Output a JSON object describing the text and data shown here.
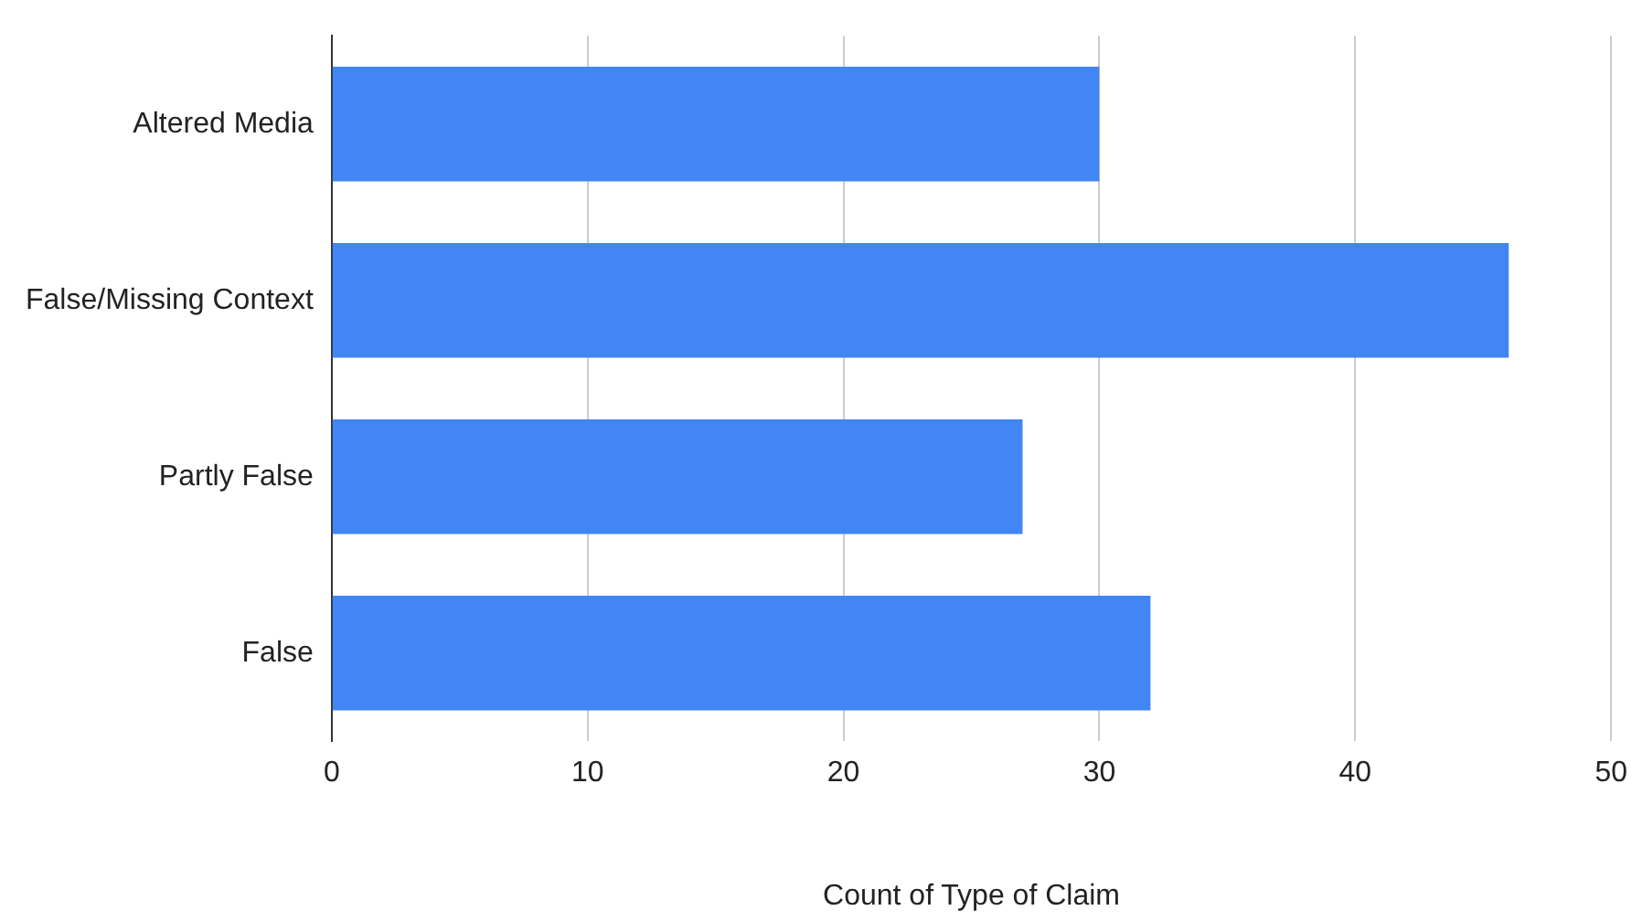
{
  "chart_data": {
    "type": "bar",
    "orientation": "horizontal",
    "xlabel": "Count of Type of Claim",
    "categories": [
      "Altered Media",
      "False/Missing Context",
      "Partly False",
      "False"
    ],
    "values": [
      30,
      46,
      27,
      32
    ],
    "color": "#4285f4",
    "xlim": [
      0,
      50
    ],
    "xticks": [
      0,
      10,
      20,
      30,
      40,
      50
    ],
    "grid": "x",
    "legend": false
  }
}
